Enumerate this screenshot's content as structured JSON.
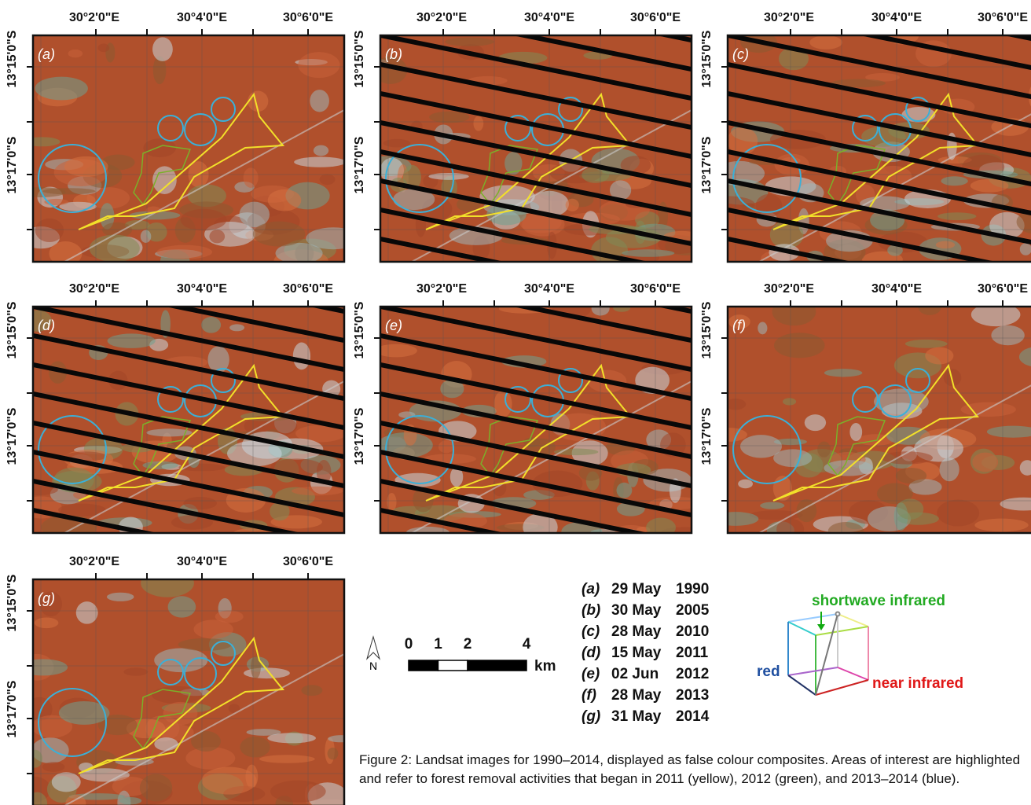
{
  "panels": [
    {
      "label": "(a)"
    },
    {
      "label": "(b)"
    },
    {
      "label": "(c)"
    },
    {
      "label": "(d)"
    },
    {
      "label": "(e)"
    },
    {
      "label": "(f)"
    },
    {
      "label": "(g)"
    }
  ],
  "longitude_labels": [
    "30°2'0\"E",
    "30°4'0\"E",
    "30°6'0\"E"
  ],
  "latitude_labels": [
    "13°15'0\"S",
    "13°17'0\"S"
  ],
  "legend": [
    {
      "label": "(a)",
      "date": "29 May",
      "year": "1990"
    },
    {
      "label": "(b)",
      "date": "30 May",
      "year": "2005"
    },
    {
      "label": "(c)",
      "date": "28 May",
      "year": "2010"
    },
    {
      "label": "(d)",
      "date": "15 May",
      "year": "2011"
    },
    {
      "label": "(e)",
      "date": "02 Jun",
      "year": "2012"
    },
    {
      "label": "(f)",
      "date": "28 May",
      "year": "2013"
    },
    {
      "label": "(g)",
      "date": "31 May",
      "year": "2014"
    }
  ],
  "scale_bar": {
    "ticks": [
      0,
      1,
      2,
      4
    ],
    "unit": "km"
  },
  "north": "N",
  "color_cube": {
    "top": "shortwave infrared",
    "left": "red",
    "right": "near infrared"
  },
  "caption": "Figure 2: Landsat images for 1990–2014, displayed as false colour composites. Areas of interest are highlighted and refer to forest removal activities that began in 2011 (yellow), 2012 (green), and 2013–2014 (blue)."
}
